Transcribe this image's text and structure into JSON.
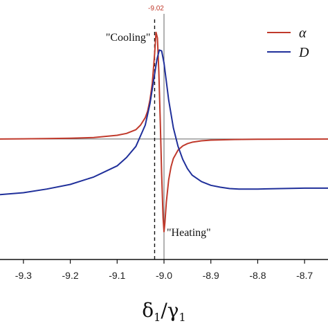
{
  "colors": {
    "alpha": "#c0392b",
    "D": "#1f2f9a",
    "axis": "#111111",
    "guide": "#666666",
    "marker_label": "#c0392b"
  },
  "chart_data": {
    "type": "line",
    "xlabel_main": "δ",
    "xlabel_sub1": "1",
    "xlabel_sep": "/γ",
    "xlabel_sub2": "1",
    "xlim": [
      -9.35,
      -8.65
    ],
    "ylim": [
      -1.3,
      1.35
    ],
    "x_ticks": [
      -9.3,
      -9.2,
      -9.1,
      -9.0,
      -8.9,
      -8.8,
      -8.7
    ],
    "x_tick_labels": [
      "-9.3",
      "-9.2",
      "-9.1",
      "-9.0",
      "-8.9",
      "-8.8",
      "-8.7"
    ],
    "marker": {
      "x": -9.02,
      "label": "-9.02"
    },
    "zero_line_x": -9.0,
    "legend": {
      "position": "top-right"
    },
    "series": [
      {
        "name": "α",
        "key": "alpha",
        "x": [
          -9.35,
          -9.3,
          -9.25,
          -9.2,
          -9.15,
          -9.1,
          -9.08,
          -9.06,
          -9.05,
          -9.04,
          -9.035,
          -9.03,
          -9.025,
          -9.02,
          -9.017,
          -9.014,
          -9.011,
          -9.008,
          -9.005,
          -9.002,
          -9.0,
          -8.998,
          -8.995,
          -8.99,
          -8.985,
          -8.98,
          -8.97,
          -8.96,
          -8.95,
          -8.94,
          -8.92,
          -8.9,
          -8.85,
          -8.8,
          -8.75,
          -8.7,
          -8.65
        ],
        "y": [
          0.0,
          0.002,
          0.004,
          0.008,
          0.016,
          0.04,
          0.06,
          0.1,
          0.15,
          0.23,
          0.3,
          0.42,
          0.6,
          0.92,
          1.15,
          1.09,
          0.72,
          0.2,
          -0.38,
          -0.85,
          -1.0,
          -0.9,
          -0.68,
          -0.44,
          -0.3,
          -0.21,
          -0.12,
          -0.075,
          -0.05,
          -0.035,
          -0.02,
          -0.012,
          -0.006,
          -0.003,
          -0.002,
          -0.001,
          0.0
        ]
      },
      {
        "name": "D",
        "key": "D",
        "x": [
          -9.35,
          -9.3,
          -9.25,
          -9.2,
          -9.15,
          -9.1,
          -9.08,
          -9.06,
          -9.04,
          -9.03,
          -9.02,
          -9.015,
          -9.01,
          -9.005,
          -9.0,
          -8.995,
          -8.99,
          -8.98,
          -8.97,
          -8.96,
          -8.95,
          -8.94,
          -8.92,
          -8.9,
          -8.88,
          -8.86,
          -8.84,
          -8.82,
          -8.8,
          -8.75,
          -8.7,
          -8.65
        ],
        "y": [
          -0.6,
          -0.58,
          -0.54,
          -0.49,
          -0.41,
          -0.29,
          -0.2,
          -0.08,
          0.15,
          0.38,
          0.7,
          0.86,
          0.96,
          0.95,
          0.82,
          0.62,
          0.42,
          0.12,
          -0.08,
          -0.22,
          -0.32,
          -0.39,
          -0.46,
          -0.5,
          -0.52,
          -0.535,
          -0.54,
          -0.54,
          -0.54,
          -0.535,
          -0.53,
          -0.53
        ]
      }
    ],
    "annotations": [
      {
        "text": "\"Cooling\"",
        "x": -9.02,
        "y": 1.15
      },
      {
        "text": "\"Heating\"",
        "x": -9.0,
        "y": -1.0
      }
    ]
  }
}
